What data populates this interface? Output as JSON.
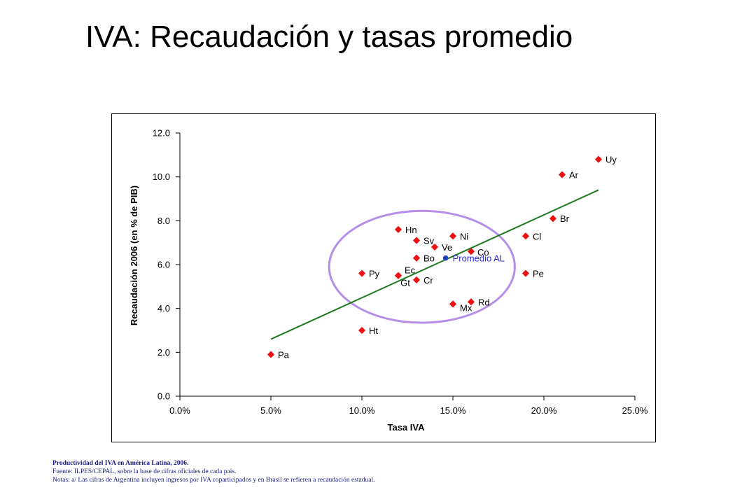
{
  "slide": {
    "title": "IVA: Recaudación y tasas promedio"
  },
  "footnotes": {
    "title": "Productividad del IVA en América Latina, 2006.",
    "source": "Fuente: ILPES/CEPAL, sobre la base de cifras oficiales de cada país.",
    "notes": "Notas: a/ Las cifras de Argentina incluyen ingresos por IVA coparticipados y en Brasil se refieren a recaudación estadual."
  },
  "colors": {
    "point": "#ee1111",
    "average_point": "#1f3fbf",
    "trend_line": "#1f7a1f",
    "circle": "#b48ee8",
    "axis": "#000000"
  },
  "chart_data": {
    "type": "scatter",
    "title": "",
    "xlabel": "Tasa IVA",
    "ylabel": "Recaudación 2006 (en % de PIB)",
    "xlim": [
      0,
      25
    ],
    "ylim": [
      0,
      12
    ],
    "x_ticks": [
      "0.0%",
      "5.0%",
      "10.0%",
      "15.0%",
      "20.0%",
      "25.0%"
    ],
    "x_tick_values": [
      0,
      5,
      10,
      15,
      20,
      25
    ],
    "y_ticks": [
      "0.0",
      "2.0",
      "4.0",
      "6.0",
      "8.0",
      "10.0",
      "12.0"
    ],
    "y_tick_values": [
      0,
      2,
      4,
      6,
      8,
      10,
      12
    ],
    "grid": false,
    "series": [
      {
        "points": [
          {
            "label": "Uy",
            "x": 23.0,
            "y": 10.8
          },
          {
            "label": "Ar",
            "x": 21.0,
            "y": 10.1
          },
          {
            "label": "Br",
            "x": 20.5,
            "y": 8.1
          },
          {
            "label": "Cl",
            "x": 19.0,
            "y": 7.3
          },
          {
            "label": "Pe",
            "x": 19.0,
            "y": 5.6
          },
          {
            "label": "Hn",
            "x": 12.0,
            "y": 7.6
          },
          {
            "label": "Ni",
            "x": 15.0,
            "y": 7.3
          },
          {
            "label": "Sv",
            "x": 13.0,
            "y": 7.1
          },
          {
            "label": "Ve",
            "x": 14.0,
            "y": 6.8
          },
          {
            "label": "Co",
            "x": 16.0,
            "y": 6.6
          },
          {
            "label": "Bo",
            "x": 13.0,
            "y": 6.3
          },
          {
            "label": "Py",
            "x": 10.0,
            "y": 5.6
          },
          {
            "label": "Ec",
            "x": 12.0,
            "y": 5.5
          },
          {
            "label": "Gt",
            "x": 12.0,
            "y": 5.5
          },
          {
            "label": "Cr",
            "x": 13.0,
            "y": 5.3
          },
          {
            "label": "Rd",
            "x": 16.0,
            "y": 4.3
          },
          {
            "label": "Mx",
            "x": 15.0,
            "y": 4.2
          },
          {
            "label": "Ht",
            "x": 10.0,
            "y": 3.0
          },
          {
            "label": "Pa",
            "x": 5.0,
            "y": 1.9
          }
        ]
      },
      {
        "points": [
          {
            "label": "Promedio AL",
            "x": 14.6,
            "y": 6.3
          }
        ]
      }
    ],
    "trend_line": {
      "x": [
        5.0,
        23.0
      ],
      "y": [
        2.6,
        9.4
      ]
    },
    "highlight_circle": {
      "center_x": 13.3,
      "center_y": 5.9,
      "radius_x": 5.1,
      "radius_y": 2.55
    }
  }
}
